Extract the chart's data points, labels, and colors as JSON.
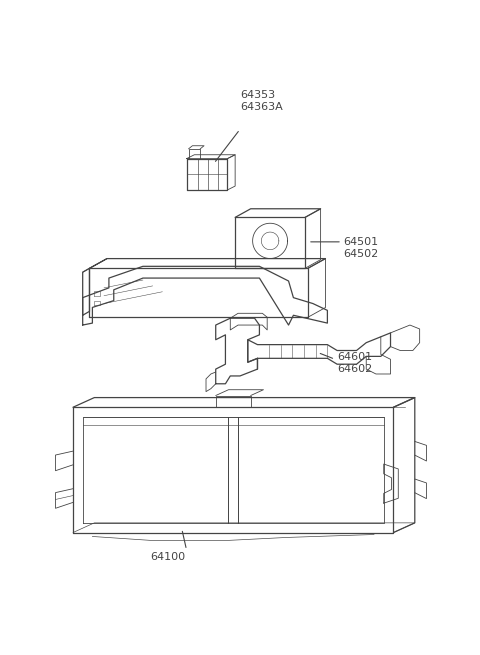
{
  "bg_color": "#ffffff",
  "line_color": "#444444",
  "label_color": "#444444",
  "figsize": [
    4.8,
    6.55
  ],
  "dpi": 100
}
